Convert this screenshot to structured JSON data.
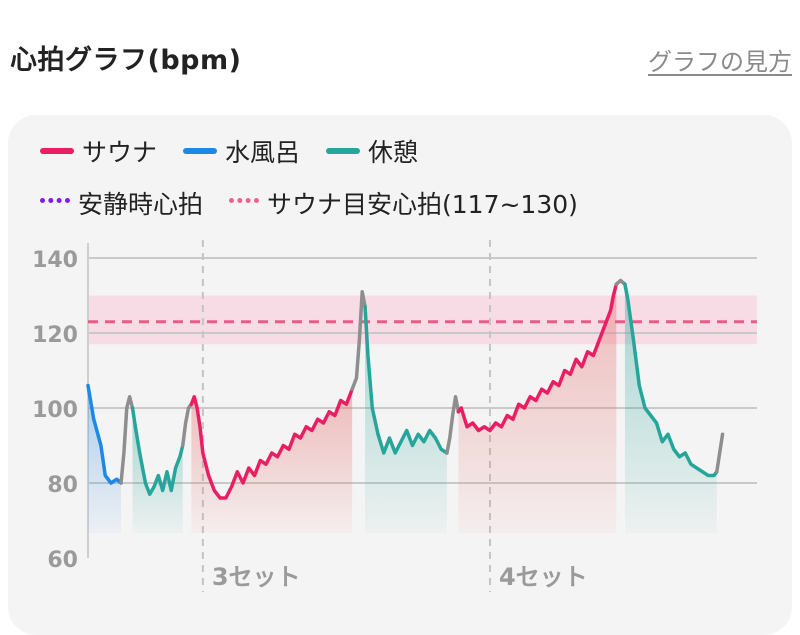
{
  "header": {
    "title": "心拍グラフ(bpm)",
    "howto_link": "グラフの見方"
  },
  "legend": [
    {
      "label": "サウナ",
      "color": "#e91e63",
      "style": "solid"
    },
    {
      "label": "水風呂",
      "color": "#1e88e5",
      "style": "solid"
    },
    {
      "label": "休憩",
      "color": "#26a69a",
      "style": "solid"
    },
    {
      "label": "安静時心拍",
      "color": "#7e1fe8",
      "style": "dotted"
    },
    {
      "label": "サウナ目安心拍(117~130)",
      "color": "#f06292",
      "style": "dotted"
    }
  ],
  "chart_data": {
    "type": "line",
    "ylim": [
      60,
      140
    ],
    "yticks": [
      60,
      80,
      100,
      120,
      140
    ],
    "grid": true,
    "target_band": [
      117,
      130
    ],
    "target_line": 123,
    "set_markers": [
      {
        "x": 3.0,
        "label": "3セット"
      },
      {
        "x": 4.0,
        "label": "4セット"
      }
    ],
    "xlim": [
      2.6,
      4.93
    ],
    "colors": {
      "サウナ": "#e91e63",
      "水風呂": "#1e88e5",
      "休憩": "#26a69a",
      "transition": "#8e8e8e"
    },
    "series": [
      {
        "name": "水風呂",
        "points": [
          [
            2.6,
            106
          ],
          [
            2.62,
            97
          ],
          [
            2.645,
            90
          ],
          [
            2.66,
            82
          ],
          [
            2.68,
            80
          ],
          [
            2.7,
            81
          ],
          [
            2.715,
            80
          ]
        ]
      },
      {
        "name": "transition",
        "points": [
          [
            2.715,
            80
          ],
          [
            2.725,
            88
          ],
          [
            2.735,
            100
          ],
          [
            2.745,
            103
          ],
          [
            2.755,
            100
          ]
        ]
      },
      {
        "name": "休憩",
        "points": [
          [
            2.755,
            100
          ],
          [
            2.765,
            95
          ],
          [
            2.78,
            88
          ],
          [
            2.8,
            80
          ],
          [
            2.815,
            77
          ],
          [
            2.83,
            79
          ],
          [
            2.845,
            82
          ],
          [
            2.86,
            78
          ],
          [
            2.875,
            83
          ],
          [
            2.89,
            78
          ],
          [
            2.905,
            84
          ],
          [
            2.92,
            87
          ],
          [
            2.93,
            90
          ]
        ]
      },
      {
        "name": "transition",
        "points": [
          [
            2.93,
            90
          ],
          [
            2.94,
            96
          ],
          [
            2.95,
            100
          ],
          [
            2.96,
            101
          ]
        ]
      },
      {
        "name": "サウナ",
        "points": [
          [
            2.96,
            101
          ],
          [
            2.97,
            103
          ],
          [
            2.98,
            100
          ],
          [
            2.99,
            95
          ],
          [
            3.0,
            88
          ],
          [
            3.02,
            82
          ],
          [
            3.04,
            78
          ],
          [
            3.06,
            76
          ],
          [
            3.08,
            76
          ],
          [
            3.1,
            79
          ],
          [
            3.12,
            83
          ],
          [
            3.14,
            80
          ],
          [
            3.16,
            84
          ],
          [
            3.18,
            82
          ],
          [
            3.2,
            86
          ],
          [
            3.22,
            85
          ],
          [
            3.24,
            88
          ],
          [
            3.26,
            87
          ],
          [
            3.28,
            90
          ],
          [
            3.3,
            89
          ],
          [
            3.32,
            93
          ],
          [
            3.34,
            92
          ],
          [
            3.36,
            95
          ],
          [
            3.38,
            94
          ],
          [
            3.4,
            97
          ],
          [
            3.42,
            96
          ],
          [
            3.44,
            99
          ],
          [
            3.46,
            98
          ],
          [
            3.48,
            102
          ],
          [
            3.5,
            101
          ],
          [
            3.52,
            105
          ]
        ]
      },
      {
        "name": "transition",
        "points": [
          [
            3.52,
            105
          ],
          [
            3.535,
            108
          ],
          [
            3.545,
            118
          ],
          [
            3.555,
            131
          ],
          [
            3.565,
            127
          ]
        ]
      },
      {
        "name": "休憩",
        "points": [
          [
            3.565,
            127
          ],
          [
            3.575,
            114
          ],
          [
            3.59,
            100
          ],
          [
            3.61,
            93
          ],
          [
            3.63,
            88
          ],
          [
            3.65,
            92
          ],
          [
            3.67,
            88
          ],
          [
            3.69,
            91
          ],
          [
            3.71,
            94
          ],
          [
            3.73,
            90
          ],
          [
            3.75,
            93
          ],
          [
            3.77,
            91
          ],
          [
            3.79,
            94
          ],
          [
            3.81,
            92
          ],
          [
            3.83,
            89
          ],
          [
            3.85,
            88
          ]
        ]
      },
      {
        "name": "transition",
        "points": [
          [
            3.85,
            88
          ],
          [
            3.86,
            92
          ],
          [
            3.87,
            98
          ],
          [
            3.88,
            103
          ],
          [
            3.89,
            99
          ]
        ]
      },
      {
        "name": "サウナ",
        "points": [
          [
            3.89,
            99
          ],
          [
            3.9,
            100
          ],
          [
            3.92,
            95
          ],
          [
            3.94,
            96
          ],
          [
            3.96,
            94
          ],
          [
            3.98,
            95
          ],
          [
            4.0,
            94
          ],
          [
            4.02,
            96
          ],
          [
            4.04,
            95
          ],
          [
            4.06,
            98
          ],
          [
            4.08,
            97
          ],
          [
            4.1,
            101
          ],
          [
            4.12,
            100
          ],
          [
            4.14,
            103
          ],
          [
            4.16,
            102
          ],
          [
            4.18,
            105
          ],
          [
            4.2,
            104
          ],
          [
            4.22,
            107
          ],
          [
            4.24,
            106
          ],
          [
            4.26,
            110
          ],
          [
            4.28,
            109
          ],
          [
            4.3,
            113
          ],
          [
            4.32,
            111
          ],
          [
            4.34,
            115
          ],
          [
            4.36,
            114
          ],
          [
            4.38,
            118
          ],
          [
            4.4,
            122
          ],
          [
            4.42,
            126
          ],
          [
            4.43,
            130
          ],
          [
            4.44,
            133
          ]
        ]
      },
      {
        "name": "transition",
        "points": [
          [
            4.44,
            133
          ],
          [
            4.455,
            134
          ],
          [
            4.47,
            133
          ]
        ]
      },
      {
        "name": "休憩",
        "points": [
          [
            4.47,
            133
          ],
          [
            4.48,
            129
          ],
          [
            4.5,
            118
          ],
          [
            4.52,
            106
          ],
          [
            4.54,
            100
          ],
          [
            4.56,
            98
          ],
          [
            4.58,
            96
          ],
          [
            4.6,
            91
          ],
          [
            4.62,
            93
          ],
          [
            4.64,
            89
          ],
          [
            4.66,
            87
          ],
          [
            4.68,
            88
          ],
          [
            4.7,
            85
          ],
          [
            4.72,
            84
          ],
          [
            4.74,
            83
          ],
          [
            4.76,
            82
          ],
          [
            4.78,
            82
          ],
          [
            4.79,
            83
          ]
        ]
      },
      {
        "name": "transition",
        "points": [
          [
            4.79,
            83
          ],
          [
            4.8,
            88
          ],
          [
            4.81,
            93
          ]
        ]
      }
    ]
  }
}
